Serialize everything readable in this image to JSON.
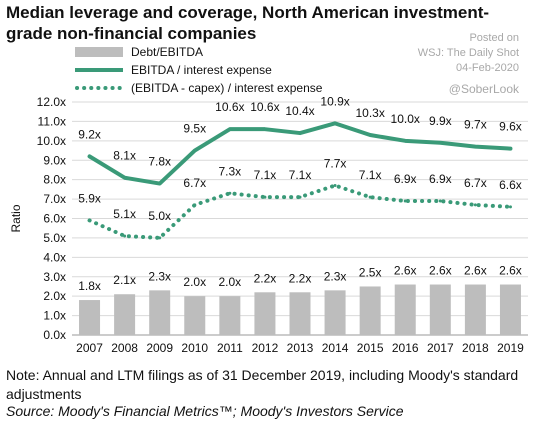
{
  "header": {
    "title": "Median leverage and coverage, North American investment-grade non-financial companies"
  },
  "watermark": {
    "posted": "Posted on",
    "source": "WSJ: The Daily Shot",
    "date": "04-Feb-2020",
    "handle": "@SoberLook"
  },
  "footer": {
    "note": "Note: Annual and LTM filings as of 31 December 2019, including Moody's standard adjustments",
    "source": "Source: Moody's Financial Metrics™; Moody's Investors Service"
  },
  "colors": {
    "bar": "#bdbdbd",
    "line": "#3a9a78",
    "grid": "#d9d9d9"
  },
  "chart_data": {
    "type": "bar",
    "title": "Median leverage and coverage, North American investment-grade non-financial companies",
    "xlabel": "",
    "ylabel": "Ratio",
    "ylim": [
      0,
      12
    ],
    "yticks": [
      "0.0x",
      "1.0x",
      "2.0x",
      "3.0x",
      "4.0x",
      "5.0x",
      "6.0x",
      "7.0x",
      "8.0x",
      "9.0x",
      "10.0x",
      "11.0x",
      "12.0x"
    ],
    "grid": true,
    "legend_position": "top-left",
    "categories": [
      "2007",
      "2008",
      "2009",
      "2010",
      "2011",
      "2012",
      "2013",
      "2014",
      "2015",
      "2016",
      "2017",
      "2018",
      "2019"
    ],
    "series": [
      {
        "name": "Debt/EBITDA",
        "type": "bar",
        "values": [
          1.8,
          2.1,
          2.3,
          2.0,
          2.0,
          2.2,
          2.2,
          2.3,
          2.5,
          2.6,
          2.6,
          2.6,
          2.6
        ],
        "labels": [
          "1.8x",
          "2.1x",
          "2.3x",
          "2.0x",
          "2.0x",
          "2.2x",
          "2.2x",
          "2.3x",
          "2.5x",
          "2.6x",
          "2.6x",
          "2.6x",
          "2.6x"
        ]
      },
      {
        "name": "EBITDA / interest expense",
        "type": "line",
        "values": [
          9.2,
          8.1,
          7.8,
          9.5,
          10.6,
          10.6,
          10.4,
          10.9,
          10.3,
          10.0,
          9.9,
          9.7,
          9.6
        ],
        "labels": [
          "9.2x",
          "8.1x",
          "7.8x",
          "9.5x",
          "10.6x",
          "10.6x",
          "10.4x",
          "10.9x",
          "10.3x",
          "10.0x",
          "9.9x",
          "9.7x",
          "9.6x"
        ]
      },
      {
        "name": "(EBITDA - capex) / interest expense",
        "type": "line-dotted",
        "values": [
          5.9,
          5.1,
          5.0,
          6.7,
          7.3,
          7.1,
          7.1,
          7.7,
          7.1,
          6.9,
          6.9,
          6.7,
          6.6
        ],
        "labels": [
          "5.9x",
          "5.1x",
          "5.0x",
          "6.7x",
          "7.3x",
          "7.1x",
          "7.1x",
          "7.7x",
          "7.1x",
          "6.9x",
          "6.9x",
          "6.7x",
          "6.6x"
        ]
      }
    ]
  }
}
